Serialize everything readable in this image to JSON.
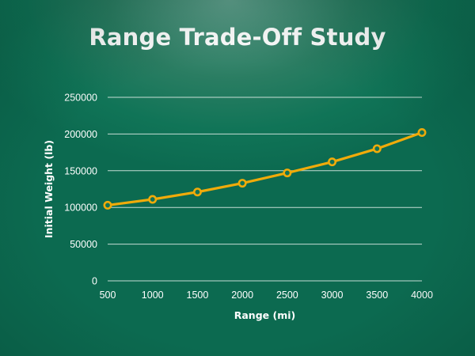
{
  "chart_data": {
    "type": "line",
    "title": "Range Trade-Off Study",
    "xlabel": "Range (mi)",
    "ylabel": "Initial Weight (lb)",
    "x": [
      500,
      1000,
      1500,
      2000,
      2500,
      3000,
      3500,
      4000
    ],
    "x_ticks": [
      "500",
      "1000",
      "1500",
      "2000",
      "2500",
      "3000",
      "3500",
      "4000"
    ],
    "y_ticks": [
      "0",
      "50000",
      "100000",
      "150000",
      "200000",
      "250000"
    ],
    "ylim": [
      0,
      250000
    ],
    "xlim": [
      500,
      4000
    ],
    "grid": "horizontal",
    "legend": "none",
    "series": [
      {
        "values": [
          103000,
          111000,
          121000,
          133000,
          147000,
          162000,
          180000,
          202000
        ]
      }
    ],
    "colors": {
      "line": "#f0ab0a",
      "marker_fill": "#127357",
      "grid": "#e6f0ec",
      "text": "#ffffff"
    }
  }
}
